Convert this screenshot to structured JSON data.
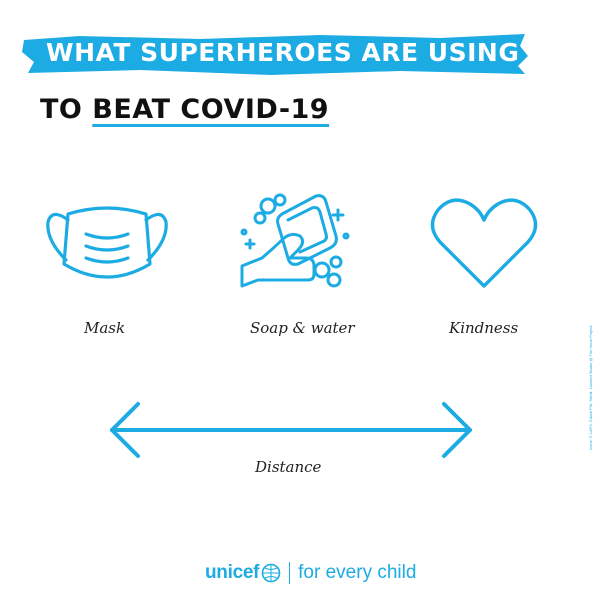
{
  "title_line1": "WHAT SUPERHEROES ARE USING",
  "title_line2_prefix": "TO",
  "title_line2_underlined": "BEAT COVID-19",
  "items": [
    {
      "label": "Mask",
      "icon": "mask-icon"
    },
    {
      "label": "Soap & water",
      "icon": "soap-hands-icon"
    },
    {
      "label": "Kindness",
      "icon": "heart-icon"
    },
    {
      "label": "Distance",
      "icon": "double-arrow-icon"
    }
  ],
  "credit": "Icons: © LAFS, Edwin PM, Shmit, Linseed Studio @ The Noun Project",
  "brand": {
    "name": "unicef",
    "tagline": "for every child"
  },
  "colors": {
    "accent": "#1CABE2",
    "text": "#111111"
  }
}
